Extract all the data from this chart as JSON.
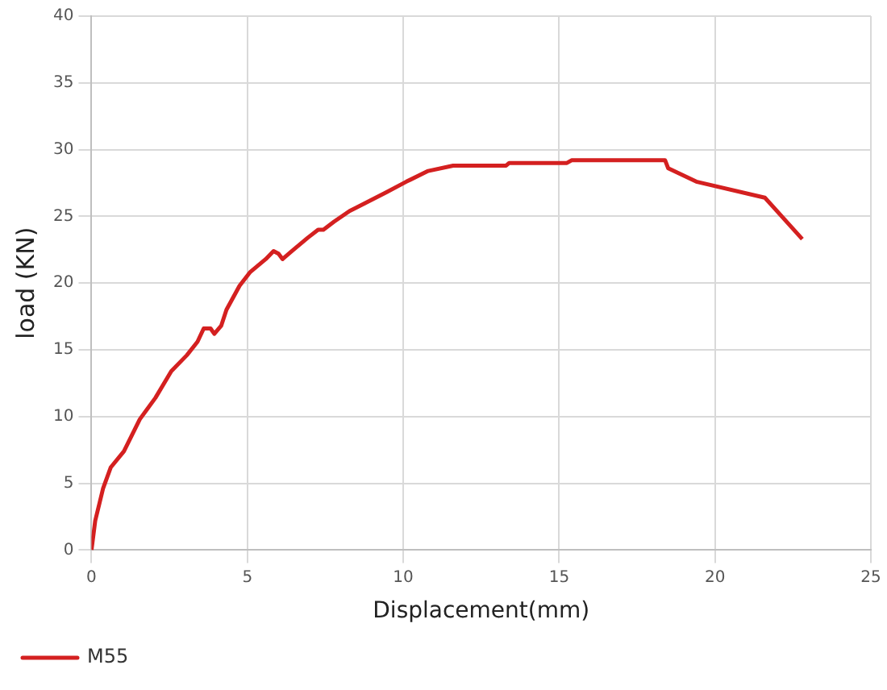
{
  "chart_data": {
    "type": "line",
    "xlabel": "Displacement(mm)",
    "ylabel": "load (KN)",
    "x": [
      0,
      0.12,
      0.37,
      0.62,
      1.04,
      1.55,
      2.05,
      2.56,
      3.06,
      3.4,
      3.6,
      3.82,
      3.94,
      4.16,
      4.33,
      4.75,
      5.08,
      5.59,
      5.84,
      6.0,
      6.13,
      6.43,
      6.94,
      7.27,
      7.44,
      7.78,
      8.28,
      8.79,
      9.46,
      10.1,
      10.8,
      11.6,
      13.3,
      13.4,
      15.25,
      15.4,
      18.4,
      18.5,
      19.4,
      21.6,
      22.8
    ],
    "series": [
      {
        "name": "M55",
        "color": "#d42020",
        "values": [
          0,
          2.2,
          4.6,
          6.2,
          7.4,
          9.8,
          11.4,
          13.4,
          14.6,
          15.6,
          16.6,
          16.6,
          16.2,
          16.8,
          18,
          19.8,
          20.8,
          21.8,
          22.4,
          22.2,
          21.8,
          22.4,
          23.4,
          24,
          24,
          24.6,
          25.4,
          26,
          26.8,
          27.6,
          28.4,
          28.8,
          28.8,
          29,
          29,
          29.2,
          29.2,
          28.6,
          27.6,
          26.4,
          23.3
        ]
      }
    ],
    "xlim": [
      0,
      25
    ],
    "xticks": [
      0,
      5,
      10,
      15,
      20,
      25
    ],
    "ylim": [
      0,
      40
    ],
    "yticks": [
      0,
      5,
      10,
      15,
      20,
      25,
      30,
      35,
      40
    ],
    "grid": true,
    "legend": "bottom left",
    "marker": "none",
    "line_style": "solid"
  }
}
